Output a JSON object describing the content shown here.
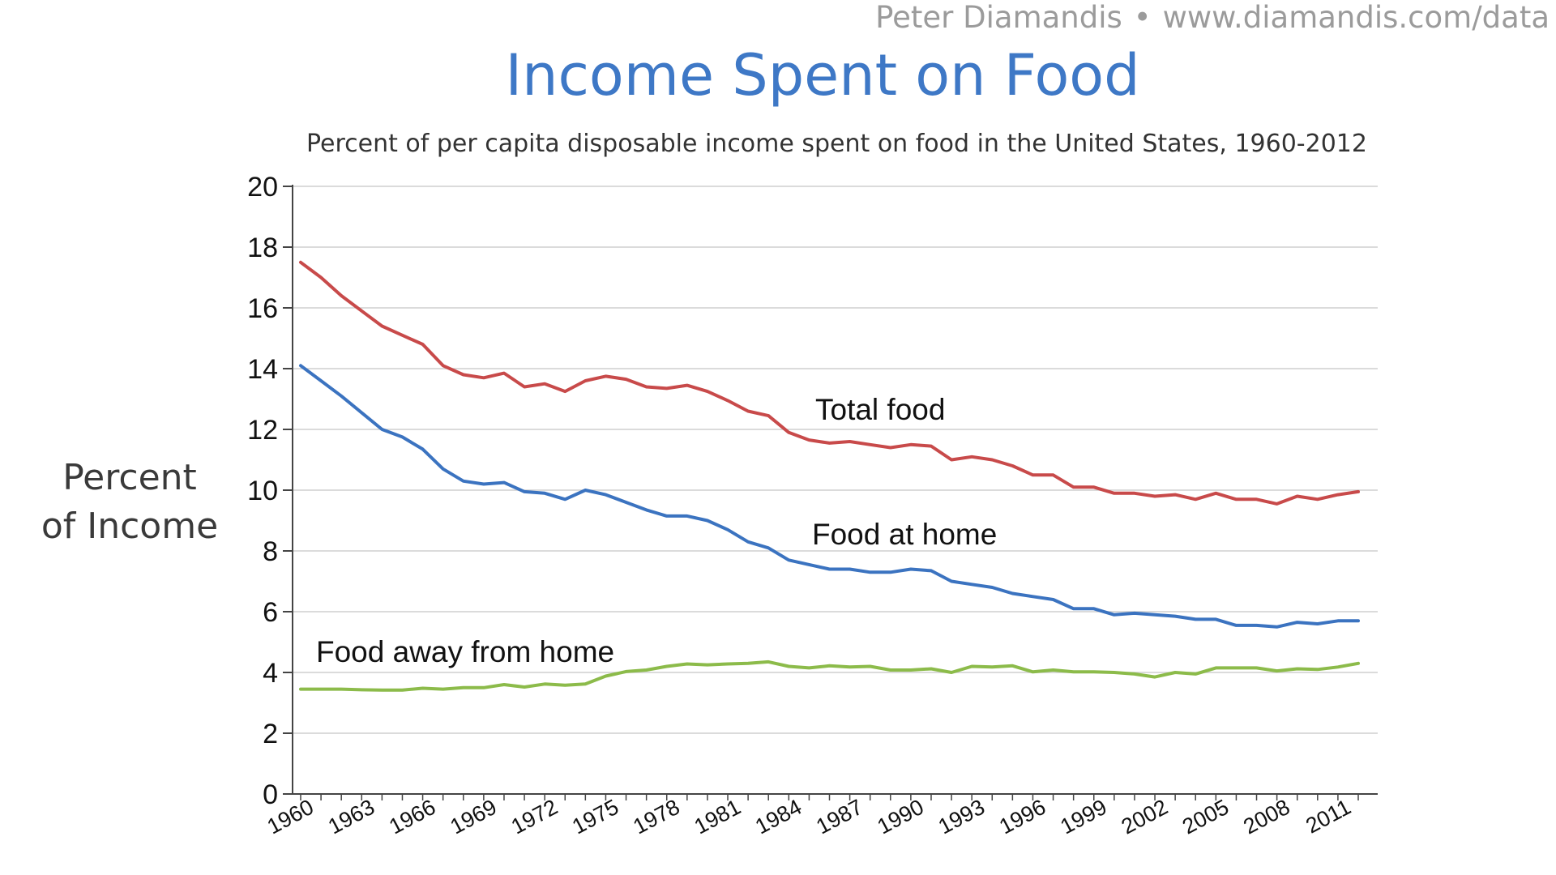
{
  "credit": {
    "author": "Peter Diamandis",
    "separator": "•",
    "url": "www.diamandis.com/data"
  },
  "chart_data": {
    "type": "line",
    "title": "Income Spent on Food",
    "subtitle": "Percent of per capita disposable income spent on food in the United States, 1960-2012",
    "xlabel": "",
    "ylabel_lines": [
      "Percent",
      "of Income"
    ],
    "ylim": [
      0,
      20
    ],
    "yticks": [
      0,
      2,
      4,
      6,
      8,
      10,
      12,
      14,
      16,
      18,
      20
    ],
    "grid": true,
    "x": [
      1960,
      1961,
      1962,
      1963,
      1964,
      1965,
      1966,
      1967,
      1968,
      1969,
      1970,
      1971,
      1972,
      1973,
      1974,
      1975,
      1976,
      1977,
      1978,
      1979,
      1980,
      1981,
      1982,
      1983,
      1984,
      1985,
      1986,
      1987,
      1988,
      1989,
      1990,
      1991,
      1992,
      1993,
      1994,
      1995,
      1996,
      1997,
      1998,
      1999,
      2000,
      2001,
      2002,
      2003,
      2004,
      2005,
      2006,
      2007,
      2008,
      2009,
      2010,
      2011,
      2012
    ],
    "xticks": [
      "1960",
      "1963",
      "1966",
      "1969",
      "1972",
      "1975",
      "1978",
      "1981",
      "1984",
      "1987",
      "1990",
      "1993",
      "1996",
      "1999",
      "2002",
      "2005",
      "2008",
      "2011"
    ],
    "series": [
      {
        "name": "Total food",
        "color": "#c84a4a",
        "values": [
          17.5,
          17.0,
          16.4,
          15.9,
          15.4,
          15.1,
          14.8,
          14.1,
          13.8,
          13.7,
          13.85,
          13.4,
          13.5,
          13.25,
          13.6,
          13.75,
          13.65,
          13.4,
          13.35,
          13.45,
          13.25,
          12.95,
          12.6,
          12.45,
          11.9,
          11.65,
          11.55,
          11.6,
          11.5,
          11.4,
          11.5,
          11.45,
          11.0,
          11.1,
          11.0,
          10.8,
          10.5,
          10.5,
          10.1,
          10.1,
          9.9,
          9.9,
          9.8,
          9.85,
          9.7,
          9.9,
          9.7,
          9.7,
          9.55,
          9.8,
          9.7,
          9.85,
          9.95
        ]
      },
      {
        "name": "Food at home",
        "color": "#3b73c0",
        "values": [
          14.1,
          13.6,
          13.1,
          12.55,
          12.0,
          11.75,
          11.35,
          10.7,
          10.3,
          10.2,
          10.25,
          9.95,
          9.9,
          9.7,
          10.0,
          9.85,
          9.6,
          9.35,
          9.15,
          9.15,
          9.0,
          8.7,
          8.3,
          8.1,
          7.7,
          7.55,
          7.4,
          7.4,
          7.3,
          7.3,
          7.4,
          7.35,
          7.0,
          6.9,
          6.8,
          6.6,
          6.5,
          6.4,
          6.1,
          6.1,
          5.9,
          5.95,
          5.9,
          5.85,
          5.75,
          5.75,
          5.55,
          5.55,
          5.5,
          5.65,
          5.6,
          5.7,
          5.7
        ]
      },
      {
        "name": "Food away from home",
        "color": "#8cbb4a",
        "values": [
          3.45,
          3.45,
          3.45,
          3.43,
          3.42,
          3.42,
          3.48,
          3.45,
          3.5,
          3.5,
          3.6,
          3.52,
          3.62,
          3.58,
          3.62,
          3.88,
          4.03,
          4.08,
          4.2,
          4.28,
          4.25,
          4.28,
          4.3,
          4.35,
          4.2,
          4.15,
          4.22,
          4.18,
          4.2,
          4.08,
          4.08,
          4.12,
          4.0,
          4.2,
          4.18,
          4.22,
          4.02,
          4.08,
          4.02,
          4.02,
          4.0,
          3.95,
          3.85,
          4.0,
          3.95,
          4.15,
          4.15,
          4.15,
          4.05,
          4.12,
          4.1,
          4.18,
          4.3
        ]
      }
    ]
  }
}
